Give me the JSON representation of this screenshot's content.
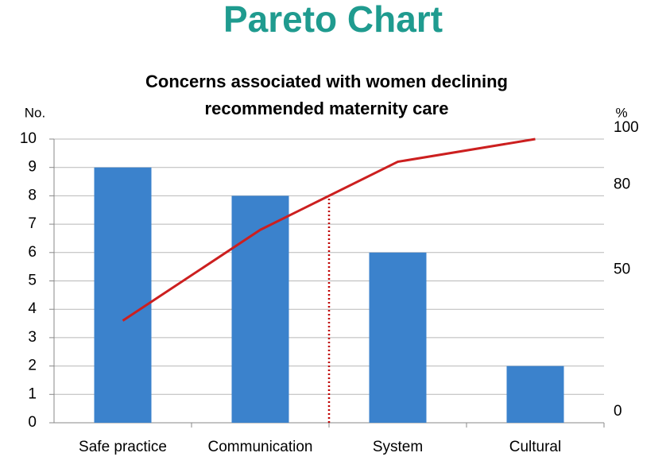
{
  "heading": "Pareto Chart",
  "chart_data": {
    "type": "pareto",
    "title": [
      "Concerns associated with women declining",
      "recommended maternity care"
    ],
    "y_label": "No.",
    "y2_label": "%",
    "categories": [
      "Safe practice",
      "Communication",
      "System",
      "Cultural"
    ],
    "series": [
      {
        "type": "bar",
        "color": "#3b82cc",
        "values": [
          9,
          8,
          6,
          2
        ]
      },
      {
        "type": "line",
        "axis": "y2",
        "color": "#cc1f1f",
        "values": [
          36,
          68,
          92,
          100
        ]
      }
    ],
    "ylim": [
      0,
      10
    ],
    "yticks": [
      0,
      1,
      2,
      3,
      4,
      5,
      6,
      7,
      8,
      9,
      10
    ],
    "y2lim": [
      0,
      100
    ],
    "y2ticks": [
      0,
      50,
      80,
      100
    ],
    "cutoff": 80,
    "grid": true
  }
}
